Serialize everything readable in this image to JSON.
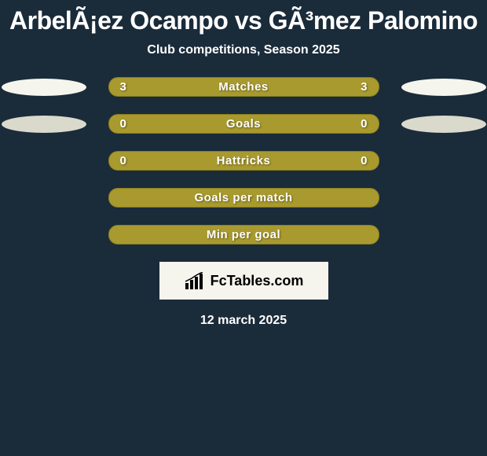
{
  "title": "ArbelÃ¡ez Ocampo vs GÃ³mez Palomino",
  "subtitle": "Club competitions, Season 2025",
  "colors": {
    "background": "#1a2b3a",
    "bar_fill": "#a89a2e",
    "bar_border": "#8a7d1f",
    "text": "#ffffff",
    "ellipse_left_1": "#f5f5ed",
    "ellipse_left_2": "#d9d9cc",
    "ellipse_right_1": "#f5f5ed",
    "ellipse_right_2": "#d9d9cc",
    "logo_bg": "#f5f5ed"
  },
  "rows": [
    {
      "label": "Matches",
      "left": "3",
      "right": "3",
      "show_left_ellipse": true,
      "show_right_ellipse": true,
      "ellipse_left_color": "#f5f5ed",
      "ellipse_right_color": "#f5f5ed"
    },
    {
      "label": "Goals",
      "left": "0",
      "right": "0",
      "show_left_ellipse": true,
      "show_right_ellipse": true,
      "ellipse_left_color": "#d9d9cc",
      "ellipse_right_color": "#d9d9cc"
    },
    {
      "label": "Hattricks",
      "left": "0",
      "right": "0",
      "show_left_ellipse": false,
      "show_right_ellipse": false
    },
    {
      "label": "Goals per match",
      "left": "",
      "right": "",
      "show_left_ellipse": false,
      "show_right_ellipse": false
    },
    {
      "label": "Min per goal",
      "left": "",
      "right": "",
      "show_left_ellipse": false,
      "show_right_ellipse": false
    }
  ],
  "logo_text": "FcTables.com",
  "date": "12 march 2025"
}
